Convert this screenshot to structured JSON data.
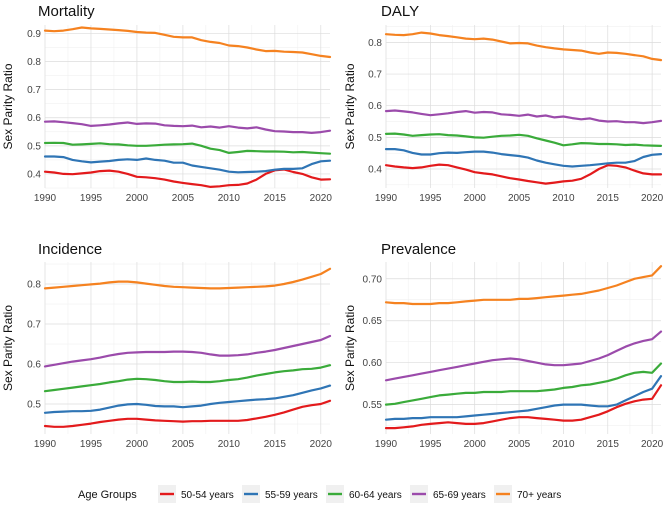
{
  "legend": {
    "title": "Age Groups",
    "position": "bottom"
  },
  "series_style": [
    {
      "name": "50-54 years",
      "color": "#e31a1c"
    },
    {
      "name": "55-59 years",
      "color": "#2f75b5"
    },
    {
      "name": "60-64 years",
      "color": "#3aab3a"
    },
    {
      "name": "65-69 years",
      "color": "#9b4bab"
    },
    {
      "name": "70+ years",
      "color": "#f58220"
    }
  ],
  "chart_data": [
    {
      "type": "line",
      "title": "Mortality",
      "xlabel": "",
      "ylabel": "Sex Parity Ratio",
      "xlim": [
        1990,
        2021
      ],
      "ylim": [
        0.35,
        0.93
      ],
      "xticks": [
        1990,
        1995,
        2000,
        2005,
        2010,
        2015,
        2020
      ],
      "yticks": [
        0.4,
        0.5,
        0.6,
        0.7,
        0.8,
        0.9
      ],
      "ytick_labels": [
        "0.4",
        "0.5",
        "0.6",
        "0.7",
        "0.8",
        "0.9"
      ],
      "grid": true,
      "x": [
        1990,
        1991,
        1992,
        1993,
        1994,
        1995,
        1996,
        1997,
        1998,
        1999,
        2000,
        2001,
        2002,
        2003,
        2004,
        2005,
        2006,
        2007,
        2008,
        2009,
        2010,
        2011,
        2012,
        2013,
        2014,
        2015,
        2016,
        2017,
        2018,
        2019,
        2020,
        2021
      ],
      "series": [
        {
          "name": "50-54 years",
          "values": [
            0.408,
            0.405,
            0.4,
            0.399,
            0.402,
            0.405,
            0.41,
            0.412,
            0.408,
            0.4,
            0.39,
            0.388,
            0.385,
            0.38,
            0.373,
            0.368,
            0.364,
            0.36,
            0.354,
            0.356,
            0.36,
            0.361,
            0.366,
            0.38,
            0.4,
            0.413,
            0.416,
            0.407,
            0.4,
            0.388,
            0.38,
            0.381
          ]
        },
        {
          "name": "55-59 years",
          "values": [
            0.462,
            0.462,
            0.46,
            0.45,
            0.445,
            0.441,
            0.444,
            0.446,
            0.45,
            0.452,
            0.45,
            0.455,
            0.45,
            0.447,
            0.44,
            0.44,
            0.43,
            0.425,
            0.42,
            0.415,
            0.408,
            0.406,
            0.407,
            0.408,
            0.41,
            0.415,
            0.418,
            0.418,
            0.42,
            0.435,
            0.445,
            0.447
          ]
        },
        {
          "name": "60-64 years",
          "values": [
            0.51,
            0.511,
            0.51,
            0.504,
            0.505,
            0.507,
            0.509,
            0.506,
            0.505,
            0.502,
            0.5,
            0.5,
            0.502,
            0.504,
            0.505,
            0.506,
            0.508,
            0.5,
            0.49,
            0.485,
            0.475,
            0.478,
            0.482,
            0.481,
            0.48,
            0.48,
            0.479,
            0.477,
            0.478,
            0.476,
            0.474,
            0.472
          ]
        },
        {
          "name": "65-69 years",
          "values": [
            0.586,
            0.587,
            0.584,
            0.581,
            0.577,
            0.571,
            0.573,
            0.576,
            0.58,
            0.583,
            0.578,
            0.58,
            0.579,
            0.573,
            0.571,
            0.57,
            0.572,
            0.566,
            0.569,
            0.565,
            0.57,
            0.565,
            0.562,
            0.566,
            0.558,
            0.552,
            0.551,
            0.549,
            0.549,
            0.546,
            0.549,
            0.554
          ]
        },
        {
          "name": "70+ years",
          "values": [
            0.91,
            0.908,
            0.91,
            0.915,
            0.921,
            0.918,
            0.916,
            0.914,
            0.912,
            0.909,
            0.905,
            0.903,
            0.902,
            0.895,
            0.888,
            0.886,
            0.886,
            0.876,
            0.87,
            0.866,
            0.857,
            0.855,
            0.85,
            0.843,
            0.837,
            0.838,
            0.835,
            0.834,
            0.832,
            0.826,
            0.82,
            0.816
          ]
        }
      ]
    },
    {
      "type": "line",
      "title": "DALY",
      "xlabel": "",
      "ylabel": "Sex Parity Ratio",
      "xlim": [
        1990,
        2021
      ],
      "ylim": [
        0.34,
        0.855
      ],
      "xticks": [
        1990,
        1995,
        2000,
        2005,
        2010,
        2015,
        2020
      ],
      "yticks": [
        0.4,
        0.5,
        0.6,
        0.7,
        0.8
      ],
      "ytick_labels": [
        "0.4",
        "0.5",
        "0.6",
        "0.7",
        "0.8"
      ],
      "grid": true,
      "x": [
        1990,
        1991,
        1992,
        1993,
        1994,
        1995,
        1996,
        1997,
        1998,
        1999,
        2000,
        2001,
        2002,
        2003,
        2004,
        2005,
        2006,
        2007,
        2008,
        2009,
        2010,
        2011,
        2012,
        2013,
        2014,
        2015,
        2016,
        2017,
        2018,
        2019,
        2020,
        2021
      ],
      "series": [
        {
          "name": "50-54 years",
          "values": [
            0.412,
            0.408,
            0.405,
            0.403,
            0.405,
            0.41,
            0.414,
            0.412,
            0.405,
            0.398,
            0.39,
            0.386,
            0.383,
            0.377,
            0.371,
            0.367,
            0.362,
            0.358,
            0.354,
            0.357,
            0.361,
            0.363,
            0.369,
            0.383,
            0.4,
            0.412,
            0.41,
            0.405,
            0.395,
            0.386,
            0.383,
            0.383
          ]
        },
        {
          "name": "55-59 years",
          "values": [
            0.463,
            0.463,
            0.459,
            0.451,
            0.446,
            0.446,
            0.45,
            0.452,
            0.451,
            0.453,
            0.455,
            0.455,
            0.452,
            0.447,
            0.444,
            0.441,
            0.436,
            0.427,
            0.42,
            0.415,
            0.41,
            0.408,
            0.41,
            0.412,
            0.415,
            0.418,
            0.42,
            0.42,
            0.425,
            0.438,
            0.445,
            0.447
          ]
        },
        {
          "name": "60-64 years",
          "values": [
            0.511,
            0.512,
            0.509,
            0.505,
            0.507,
            0.509,
            0.51,
            0.507,
            0.506,
            0.503,
            0.5,
            0.499,
            0.502,
            0.505,
            0.506,
            0.508,
            0.505,
            0.497,
            0.49,
            0.483,
            0.475,
            0.478,
            0.482,
            0.481,
            0.479,
            0.479,
            0.478,
            0.476,
            0.477,
            0.475,
            0.474,
            0.473
          ]
        },
        {
          "name": "65-69 years",
          "values": [
            0.583,
            0.585,
            0.582,
            0.579,
            0.574,
            0.57,
            0.573,
            0.576,
            0.58,
            0.583,
            0.578,
            0.58,
            0.579,
            0.573,
            0.571,
            0.568,
            0.572,
            0.566,
            0.569,
            0.563,
            0.566,
            0.561,
            0.557,
            0.56,
            0.553,
            0.55,
            0.551,
            0.548,
            0.548,
            0.545,
            0.548,
            0.552
          ]
        },
        {
          "name": "70+ years",
          "values": [
            0.826,
            0.824,
            0.823,
            0.826,
            0.831,
            0.828,
            0.823,
            0.82,
            0.816,
            0.812,
            0.81,
            0.812,
            0.809,
            0.803,
            0.797,
            0.798,
            0.797,
            0.79,
            0.785,
            0.781,
            0.778,
            0.776,
            0.774,
            0.768,
            0.764,
            0.768,
            0.767,
            0.764,
            0.76,
            0.756,
            0.748,
            0.744
          ]
        }
      ]
    },
    {
      "type": "line",
      "title": "Incidence",
      "xlabel": "",
      "ylabel": "Sex Parity Ratio",
      "xlim": [
        1990,
        2021
      ],
      "ylim": [
        0.425,
        0.855
      ],
      "xticks": [
        1990,
        1995,
        2000,
        2005,
        2010,
        2015,
        2020
      ],
      "yticks": [
        0.5,
        0.6,
        0.7,
        0.8
      ],
      "ytick_labels": [
        "0.5",
        "0.6",
        "0.7",
        "0.8"
      ],
      "grid": true,
      "x": [
        1990,
        1991,
        1992,
        1993,
        1994,
        1995,
        1996,
        1997,
        1998,
        1999,
        2000,
        2001,
        2002,
        2003,
        2004,
        2005,
        2006,
        2007,
        2008,
        2009,
        2010,
        2011,
        2012,
        2013,
        2014,
        2015,
        2016,
        2017,
        2018,
        2019,
        2020,
        2021
      ],
      "series": [
        {
          "name": "50-54 years",
          "values": [
            0.445,
            0.443,
            0.443,
            0.445,
            0.448,
            0.451,
            0.455,
            0.458,
            0.461,
            0.463,
            0.463,
            0.461,
            0.459,
            0.458,
            0.457,
            0.456,
            0.457,
            0.457,
            0.458,
            0.458,
            0.458,
            0.458,
            0.46,
            0.464,
            0.468,
            0.473,
            0.479,
            0.486,
            0.493,
            0.497,
            0.5,
            0.508
          ]
        },
        {
          "name": "55-59 years",
          "values": [
            0.478,
            0.48,
            0.481,
            0.482,
            0.482,
            0.483,
            0.486,
            0.491,
            0.496,
            0.499,
            0.5,
            0.498,
            0.495,
            0.494,
            0.494,
            0.492,
            0.494,
            0.496,
            0.5,
            0.503,
            0.505,
            0.507,
            0.509,
            0.511,
            0.512,
            0.514,
            0.518,
            0.522,
            0.528,
            0.534,
            0.539,
            0.546
          ]
        },
        {
          "name": "60-64 years",
          "values": [
            0.532,
            0.535,
            0.538,
            0.541,
            0.544,
            0.547,
            0.55,
            0.554,
            0.557,
            0.561,
            0.563,
            0.562,
            0.56,
            0.557,
            0.555,
            0.555,
            0.556,
            0.555,
            0.555,
            0.557,
            0.56,
            0.562,
            0.566,
            0.571,
            0.575,
            0.579,
            0.582,
            0.584,
            0.587,
            0.588,
            0.591,
            0.597
          ]
        },
        {
          "name": "65-69 years",
          "values": [
            0.594,
            0.598,
            0.602,
            0.606,
            0.609,
            0.612,
            0.616,
            0.621,
            0.625,
            0.628,
            0.629,
            0.63,
            0.63,
            0.63,
            0.631,
            0.631,
            0.63,
            0.628,
            0.624,
            0.621,
            0.621,
            0.622,
            0.624,
            0.628,
            0.631,
            0.635,
            0.64,
            0.645,
            0.65,
            0.655,
            0.66,
            0.67
          ]
        },
        {
          "name": "70+ years",
          "values": [
            0.789,
            0.791,
            0.793,
            0.795,
            0.797,
            0.799,
            0.801,
            0.804,
            0.806,
            0.806,
            0.804,
            0.801,
            0.798,
            0.795,
            0.793,
            0.792,
            0.791,
            0.79,
            0.789,
            0.789,
            0.79,
            0.791,
            0.792,
            0.793,
            0.794,
            0.796,
            0.8,
            0.805,
            0.811,
            0.818,
            0.825,
            0.838
          ]
        }
      ]
    },
    {
      "type": "line",
      "title": "Prevalence",
      "xlabel": "",
      "ylabel": "Sex Parity Ratio",
      "xlim": [
        1990,
        2021
      ],
      "ylim": [
        0.515,
        0.72
      ],
      "xticks": [
        1990,
        1995,
        2000,
        2005,
        2010,
        2015,
        2020
      ],
      "yticks": [
        0.55,
        0.6,
        0.65,
        0.7
      ],
      "ytick_labels": [
        "0.55",
        "0.60",
        "0.65",
        "0.70"
      ],
      "grid": true,
      "x": [
        1990,
        1991,
        1992,
        1993,
        1994,
        1995,
        1996,
        1997,
        1998,
        1999,
        2000,
        2001,
        2002,
        2003,
        2004,
        2005,
        2006,
        2007,
        2008,
        2009,
        2010,
        2011,
        2012,
        2013,
        2014,
        2015,
        2016,
        2017,
        2018,
        2019,
        2020,
        2021
      ],
      "series": [
        {
          "name": "50-54 years",
          "values": [
            0.522,
            0.522,
            0.523,
            0.524,
            0.526,
            0.527,
            0.528,
            0.529,
            0.528,
            0.527,
            0.527,
            0.528,
            0.53,
            0.532,
            0.534,
            0.535,
            0.535,
            0.534,
            0.533,
            0.532,
            0.531,
            0.531,
            0.532,
            0.535,
            0.538,
            0.542,
            0.547,
            0.551,
            0.554,
            0.556,
            0.557,
            0.573
          ]
        },
        {
          "name": "55-59 years",
          "values": [
            0.532,
            0.533,
            0.533,
            0.534,
            0.534,
            0.535,
            0.535,
            0.535,
            0.535,
            0.536,
            0.537,
            0.538,
            0.539,
            0.54,
            0.541,
            0.542,
            0.543,
            0.545,
            0.547,
            0.549,
            0.55,
            0.55,
            0.55,
            0.549,
            0.548,
            0.548,
            0.55,
            0.555,
            0.56,
            0.565,
            0.569,
            0.584
          ]
        },
        {
          "name": "60-64 years",
          "values": [
            0.55,
            0.551,
            0.553,
            0.555,
            0.557,
            0.559,
            0.561,
            0.562,
            0.563,
            0.564,
            0.564,
            0.565,
            0.565,
            0.565,
            0.566,
            0.566,
            0.566,
            0.566,
            0.567,
            0.568,
            0.57,
            0.571,
            0.573,
            0.574,
            0.576,
            0.578,
            0.581,
            0.585,
            0.588,
            0.589,
            0.588,
            0.599
          ]
        },
        {
          "name": "65-69 years",
          "values": [
            0.579,
            0.581,
            0.583,
            0.585,
            0.587,
            0.589,
            0.591,
            0.593,
            0.595,
            0.597,
            0.599,
            0.601,
            0.603,
            0.604,
            0.605,
            0.604,
            0.602,
            0.6,
            0.598,
            0.597,
            0.597,
            0.598,
            0.599,
            0.602,
            0.605,
            0.609,
            0.614,
            0.619,
            0.623,
            0.626,
            0.628,
            0.637
          ]
        },
        {
          "name": "70+ years",
          "values": [
            0.672,
            0.671,
            0.671,
            0.67,
            0.67,
            0.67,
            0.671,
            0.671,
            0.672,
            0.673,
            0.674,
            0.675,
            0.675,
            0.675,
            0.675,
            0.676,
            0.676,
            0.677,
            0.678,
            0.679,
            0.68,
            0.681,
            0.682,
            0.684,
            0.686,
            0.689,
            0.692,
            0.696,
            0.7,
            0.702,
            0.704,
            0.715
          ]
        }
      ]
    }
  ]
}
